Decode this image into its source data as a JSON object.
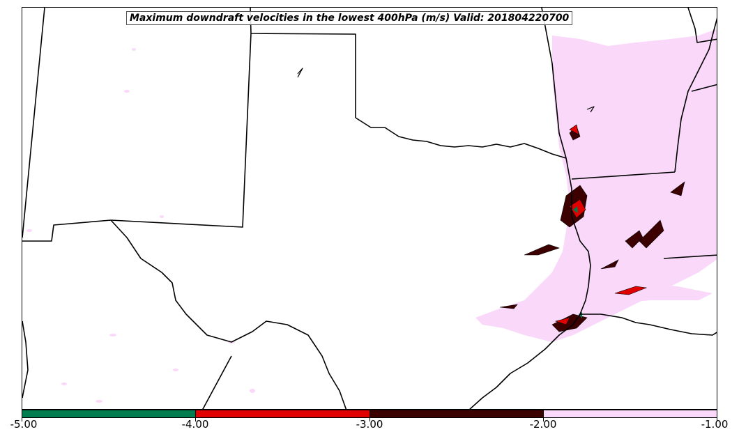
{
  "title": "Maximum downdraft velocities in the lowest 400hPa (m/s) Valid: 201804220700",
  "colorbar": {
    "segments": [
      {
        "range": [
          -5.0,
          -4.0
        ],
        "color": "#007d4e"
      },
      {
        "range": [
          -4.0,
          -3.0
        ],
        "color": "#e00000"
      },
      {
        "range": [
          -3.0,
          -2.0
        ],
        "color": "#3d0000"
      },
      {
        "range": [
          -2.0,
          -1.0
        ],
        "color": "#f9d8f9"
      }
    ],
    "tick_labels": [
      "-5.00",
      "-4.00",
      "-3.00",
      "-2.00",
      "-1.00"
    ]
  },
  "colors": {
    "weak": "#f9d8f9",
    "moderate": "#3d0000",
    "strong": "#e00000",
    "extreme": "#007d4e",
    "borders": "#000000"
  }
}
